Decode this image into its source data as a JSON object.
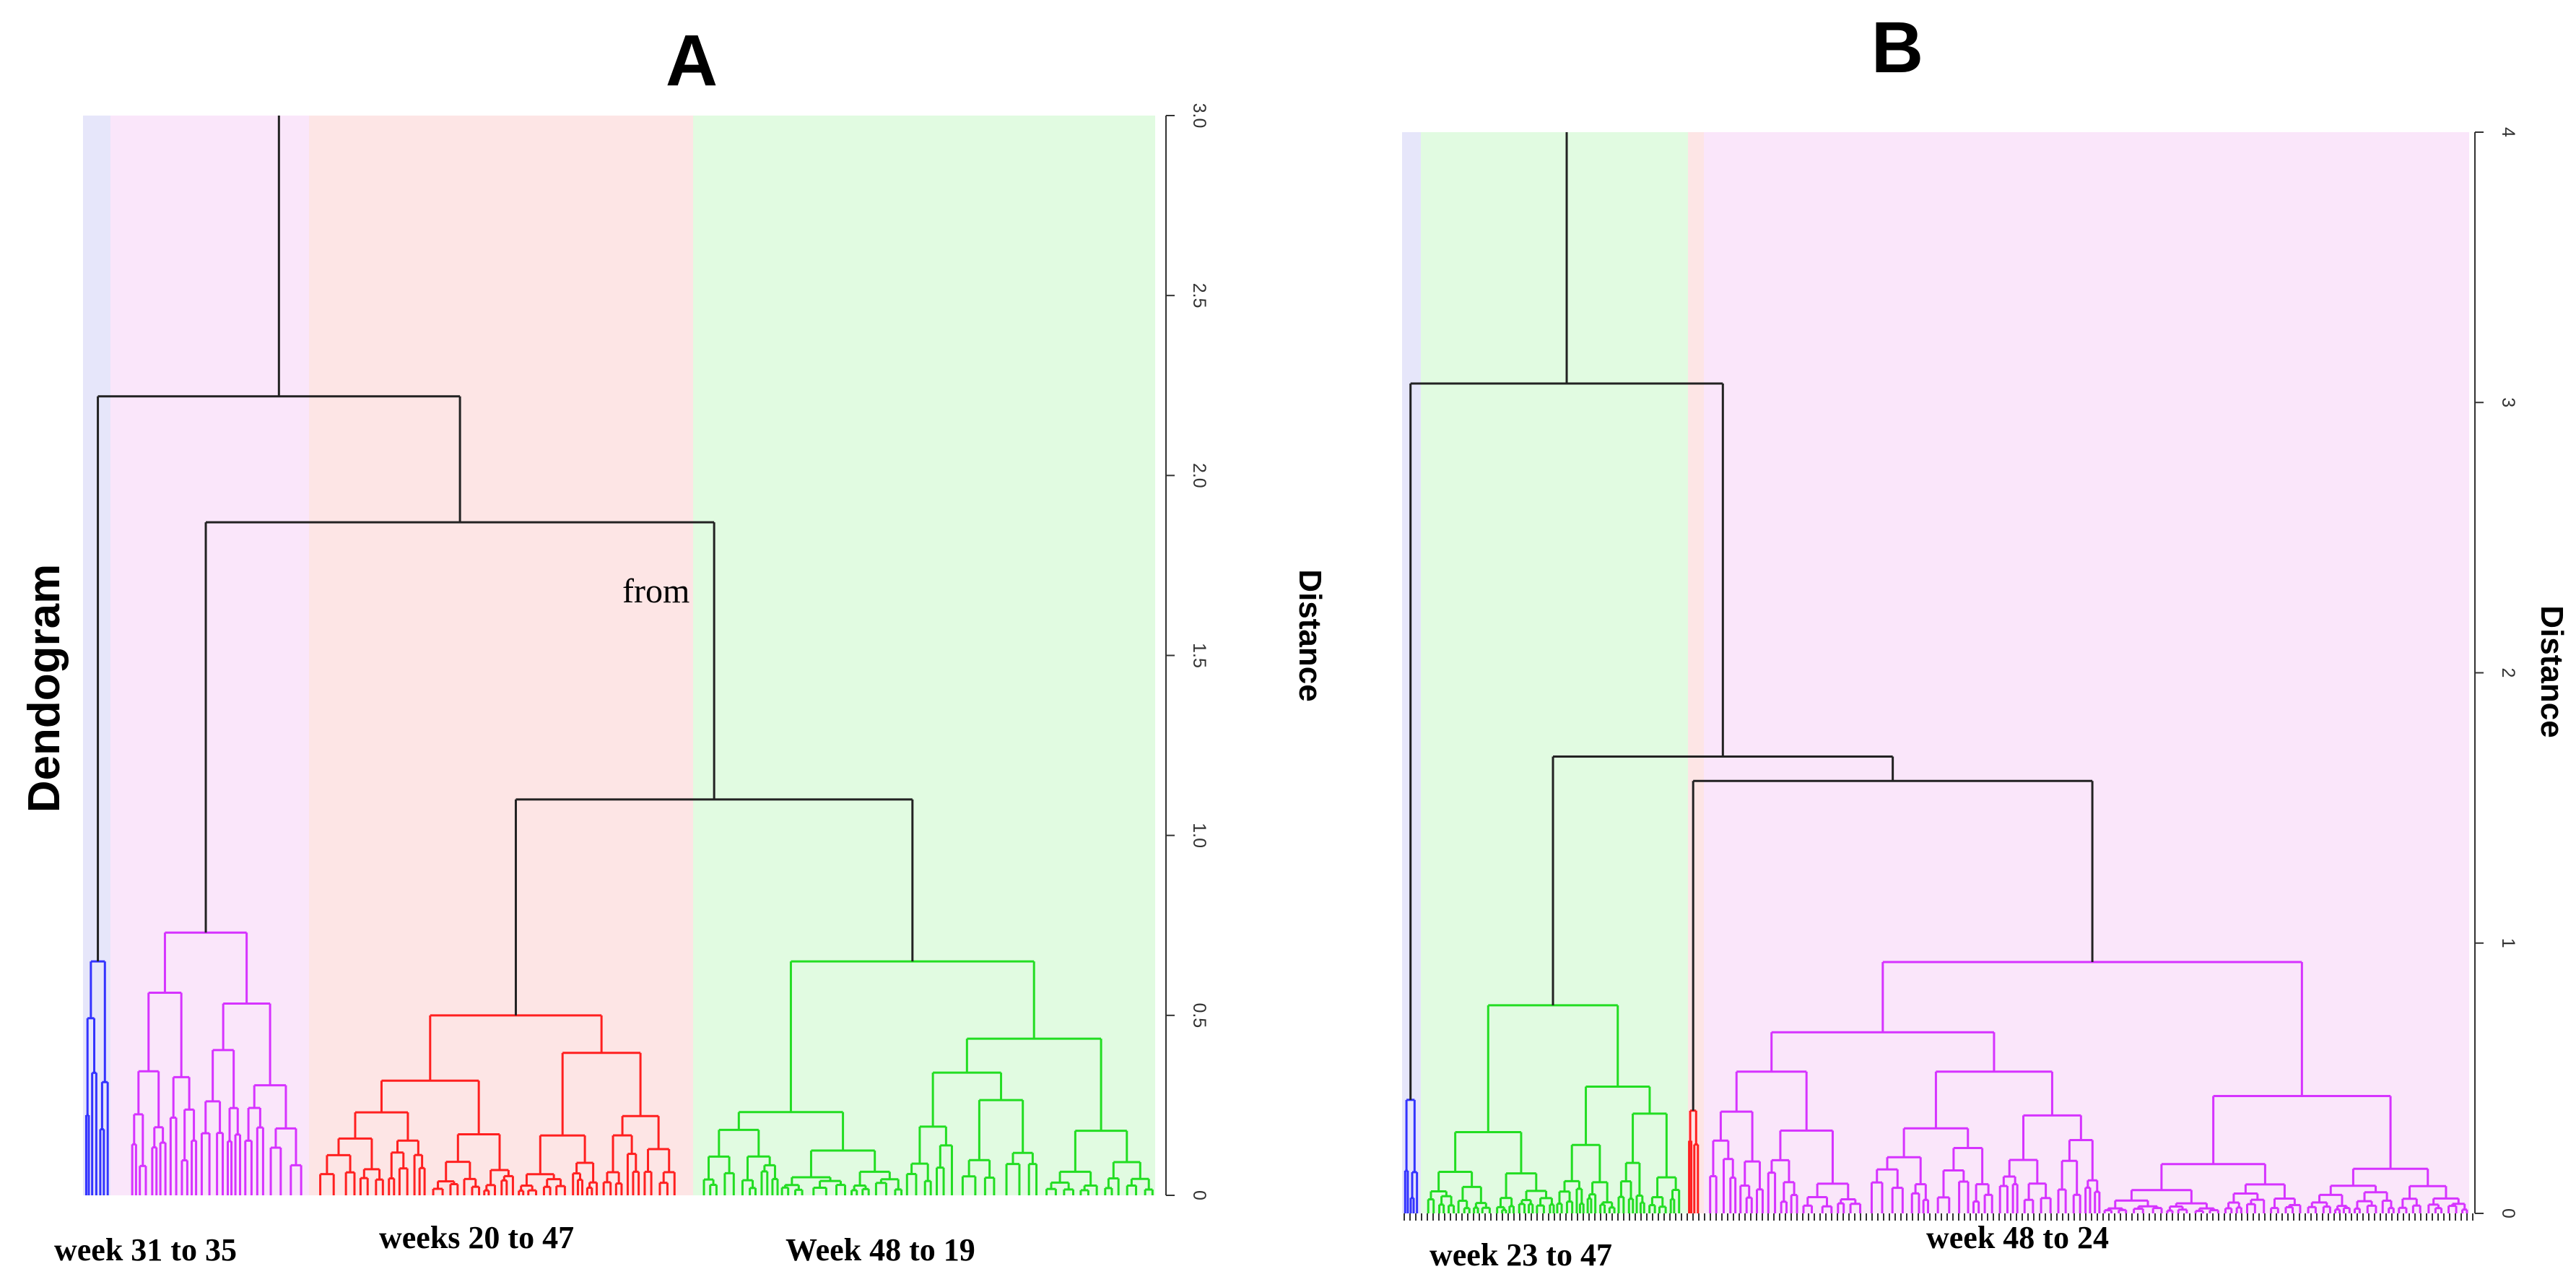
{
  "figure": {
    "side_title": "Dendogram"
  },
  "chart_data": [
    {
      "type": "dendrogram",
      "panel": "A",
      "ylabel": "Distance",
      "ylim": [
        0,
        3.0
      ],
      "yticks": [
        "0",
        "0.5",
        "1.0",
        "1.5",
        "2.0",
        "2.5",
        "3.0"
      ],
      "annotation": "from",
      "cluster_labels": [
        "week 31 to 35",
        "weeks 20 to 47",
        "Week 48 to 19"
      ],
      "cluster_regions": [
        {
          "cluster": "blue",
          "color": "#e6e6fa"
        },
        {
          "cluster": "magenta",
          "color": "#fae6fa"
        },
        {
          "cluster": "red",
          "color": "#fde5e5"
        },
        {
          "cluster": "green",
          "color": "#e1fbe1"
        }
      ],
      "top_merge_heights": [
        3.0,
        2.22,
        1.87,
        1.1
      ],
      "cluster_heights": {
        "blue": 0.65,
        "magenta": 0.73,
        "red": 0.5,
        "green": 0.65
      },
      "colors": {
        "blue": "#3333ff",
        "magenta": "#d633ff",
        "red": "#ff2020",
        "green": "#22dd22",
        "trunk": "#222222"
      }
    },
    {
      "type": "dendrogram",
      "panel": "B",
      "ylabel": "Distance",
      "ylim": [
        0,
        4
      ],
      "yticks": [
        "0",
        "1",
        "2",
        "3",
        "4"
      ],
      "cluster_labels": [
        "week 23 to 47",
        "week 48 to 24"
      ],
      "cluster_regions": [
        {
          "cluster": "blue",
          "color": "#e6e6fa"
        },
        {
          "cluster": "green",
          "color": "#e1fbe1"
        },
        {
          "cluster": "red",
          "color": "#fde5e5"
        },
        {
          "cluster": "magenta",
          "color": "#fae6fa"
        }
      ],
      "top_merge_heights": [
        4.0,
        3.07,
        1.69,
        1.6
      ],
      "cluster_heights": {
        "blue": 0.42,
        "green": 0.77,
        "red": 0.38,
        "magenta": 0.93
      },
      "colors": {
        "blue": "#3333ff",
        "magenta": "#d633ff",
        "red": "#ff2020",
        "green": "#22dd22",
        "trunk": "#222222"
      }
    }
  ]
}
